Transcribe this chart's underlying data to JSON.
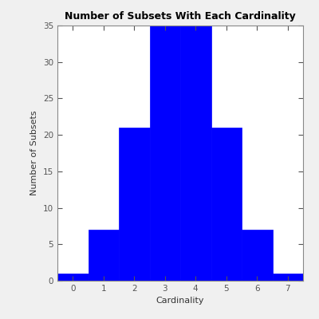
{
  "categories": [
    0,
    1,
    2,
    3,
    4,
    5,
    6,
    7
  ],
  "values": [
    1,
    7,
    21,
    35,
    35,
    21,
    7,
    1
  ],
  "bar_color": "#0000FF",
  "title": "Number of Subsets With Each Cardinality",
  "xlabel": "Cardinality",
  "ylabel": "Number of Subsets",
  "ylim": [
    0,
    35
  ],
  "yticks": [
    0,
    5,
    10,
    15,
    20,
    25,
    30,
    35
  ],
  "xlim": [
    -0.5,
    7.5
  ],
  "xticks": [
    0,
    1,
    2,
    3,
    4,
    5,
    6,
    7
  ],
  "title_fontsize": 9,
  "label_fontsize": 8,
  "tick_fontsize": 7.5,
  "bar_width": 1.0,
  "background_color": "#f0f0f0",
  "axes_color": "#ffffff"
}
